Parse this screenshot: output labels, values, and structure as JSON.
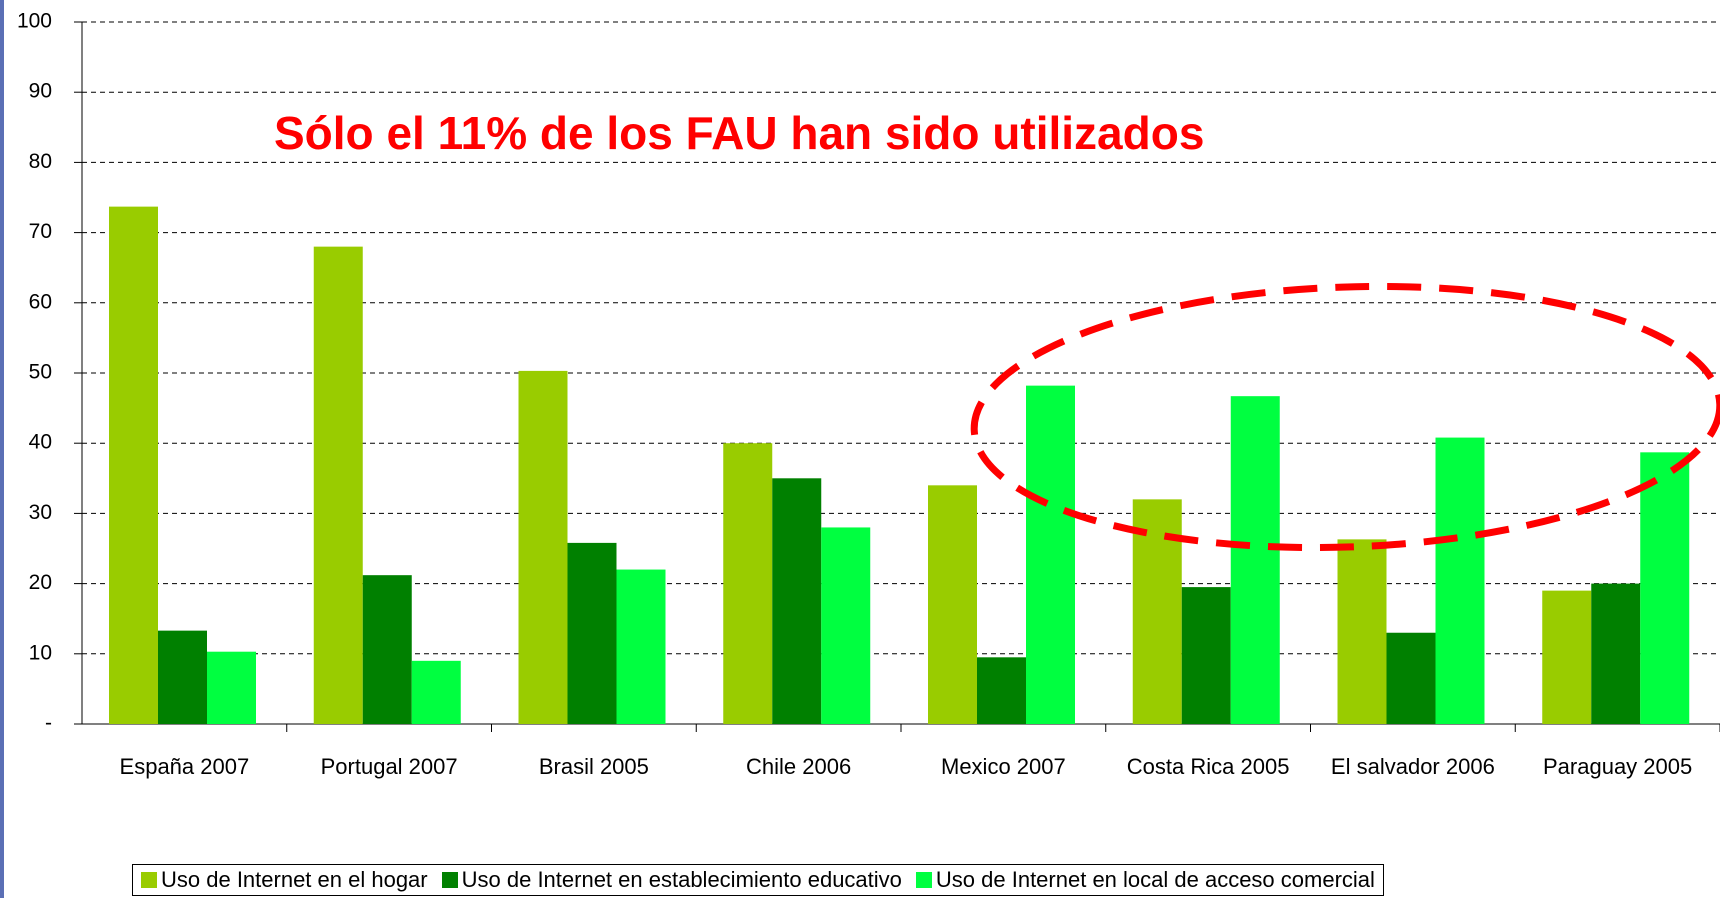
{
  "chart_data": {
    "type": "bar",
    "annotation": "Sólo el 11% de los FAU han sido utilizados",
    "categories": [
      "España 2007",
      "Portugal 2007",
      "Brasil 2005",
      "Chile 2006",
      "Mexico 2007",
      "Costa Rica 2005",
      "El salvador 2006",
      "Paraguay 2005"
    ],
    "series": [
      {
        "name": "Uso de Internet en el hogar",
        "color": "#99cc00",
        "values": [
          73.7,
          68,
          50.3,
          40,
          34,
          32,
          26.3,
          19
        ]
      },
      {
        "name": "Uso de Internet en establecimiento educativo",
        "color": "#008000",
        "values": [
          13.3,
          21.2,
          25.8,
          35,
          9.5,
          19.5,
          13,
          20
        ]
      },
      {
        "name": "Uso de Internet en local de acceso comercial",
        "color": "#00ff40",
        "values": [
          10.3,
          9,
          22,
          28,
          48.2,
          46.7,
          40.8,
          38.7
        ]
      }
    ],
    "ylim": [
      0,
      100
    ],
    "yticks": [
      {
        "value": 0,
        "label": "-"
      },
      10,
      20,
      30,
      40,
      50,
      60,
      70,
      80,
      90,
      100
    ],
    "grid": true,
    "legend": "bottom"
  }
}
